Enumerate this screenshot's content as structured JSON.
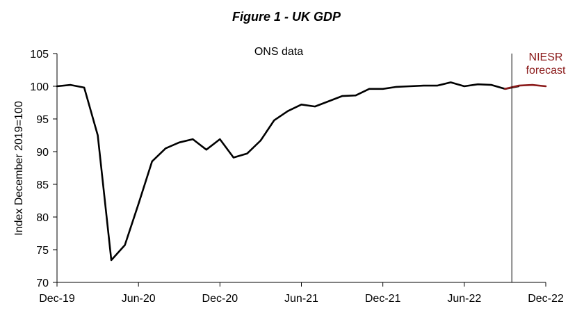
{
  "chart_data": {
    "type": "line",
    "title": "Figure 1 - UK GDP",
    "ylabel": "Index December 2019=100",
    "xlabel": "",
    "ylim": [
      70,
      105
    ],
    "yticks": [
      70,
      75,
      80,
      85,
      90,
      95,
      100,
      105
    ],
    "xticks": [
      "Dec-19",
      "Jun-20",
      "Dec-20",
      "Jun-21",
      "Dec-21",
      "Jun-22",
      "Dec-22"
    ],
    "grid": false,
    "annotations": {
      "ons": "ONS data",
      "niesr_line1": "NIESR",
      "niesr_line2": "forecast"
    },
    "forecast_start_month_index": 34,
    "series": [
      {
        "color": "#000000",
        "x": [
          "Dec-19",
          "Jan-20",
          "Feb-20",
          "Mar-20",
          "Apr-20",
          "May-20",
          "Jun-20",
          "Jul-20",
          "Aug-20",
          "Sep-20",
          "Oct-20",
          "Nov-20",
          "Dec-20",
          "Jan-21",
          "Feb-21",
          "Mar-21",
          "Apr-21",
          "May-21",
          "Jun-21",
          "Jul-21",
          "Aug-21",
          "Sep-21",
          "Oct-21",
          "Nov-21",
          "Dec-21",
          "Jan-22",
          "Feb-22",
          "Mar-22",
          "Apr-22",
          "May-22",
          "Jun-22",
          "Jul-22",
          "Aug-22",
          "Sep-22",
          "Oct-22"
        ],
        "values": [
          100.0,
          100.2,
          99.8,
          92.5,
          73.4,
          75.7,
          82.0,
          88.5,
          90.5,
          91.4,
          91.9,
          90.3,
          91.9,
          89.1,
          89.7,
          91.7,
          94.8,
          96.2,
          97.2,
          96.9,
          97.7,
          98.5,
          98.6,
          99.6,
          99.6,
          99.9,
          100.0,
          100.1,
          100.1,
          100.6,
          100.0,
          100.3,
          100.2,
          99.6,
          100.0
        ]
      },
      {
        "color": "#8b1a1a",
        "x": [
          "Sep-22",
          "Oct-22",
          "Nov-22",
          "Dec-22"
        ],
        "values": [
          99.6,
          100.1,
          100.2,
          100.0
        ]
      }
    ]
  }
}
